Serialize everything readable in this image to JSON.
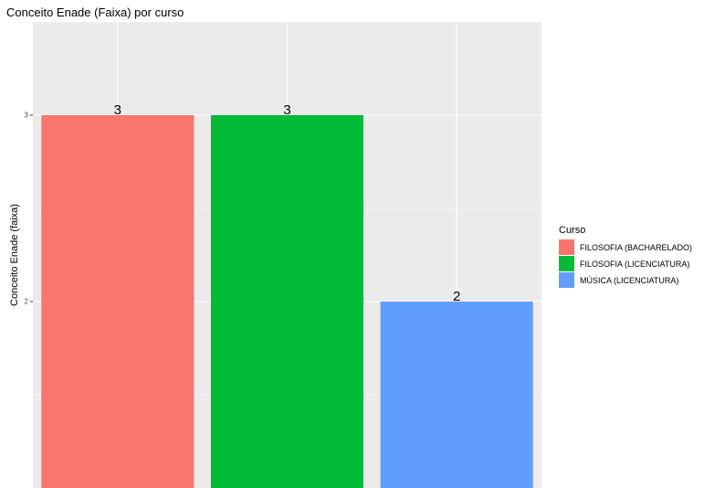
{
  "chart_data": {
    "type": "bar",
    "title": "Conceito Enade (Faixa) por curso",
    "xlabel": "",
    "ylabel": "Conceito Enade (faixa)",
    "categories": [
      "FILOSOFIA (BACHARELADO)",
      "FILOSOFIA (LICENCIATURA)",
      "MÚSICA (LICENCIATURA)"
    ],
    "values": [
      3,
      3,
      2
    ],
    "data_labels": [
      "3",
      "3",
      "2"
    ],
    "colors": [
      "#F8766D",
      "#00BA38",
      "#619CFF"
    ],
    "y_ticks": [
      2,
      3
    ],
    "y_tick_labels": [
      "2",
      "3"
    ],
    "ylim": [
      1,
      3.5
    ],
    "x_tick_labels_shown": false,
    "grid": true,
    "panel_background": "#EBEBEB",
    "grid_color": "#FFFFFF",
    "legend": {
      "title": "Curso",
      "position": "right",
      "entries": [
        "FILOSOFIA (BACHARELADO)",
        "FILOSOFIA (LICENCIATURA)",
        "MÚSICA (LICENCIATURA)"
      ]
    }
  }
}
